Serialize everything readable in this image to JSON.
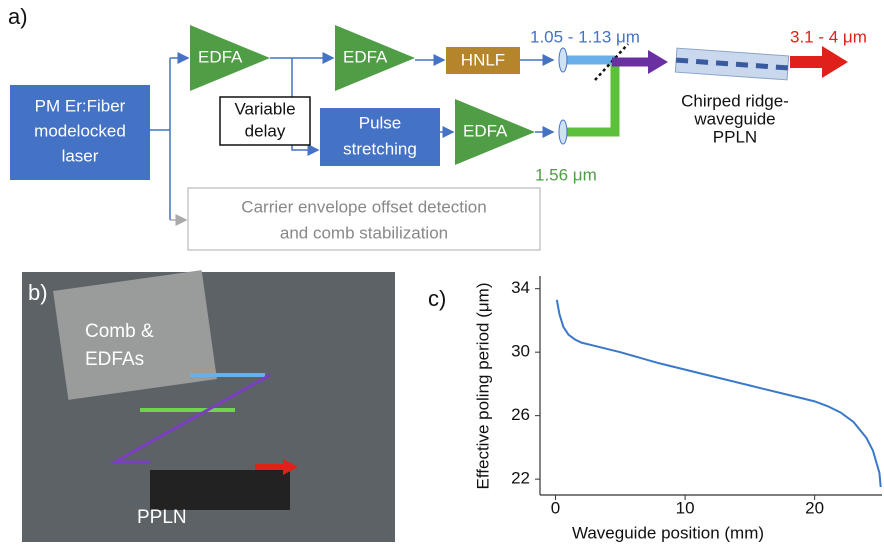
{
  "panel_a": {
    "label": "a)",
    "laser": [
      "PM Er:Fiber",
      "modelocked",
      "laser"
    ],
    "edfa": [
      "EDFA",
      "EDFA",
      "EDFA"
    ],
    "hnlf": "HNLF",
    "delay": [
      "Variable",
      "delay"
    ],
    "stretch": [
      "Pulse",
      "stretching"
    ],
    "ceo": [
      "Carrier envelope offset detection",
      "and comb stabilization"
    ],
    "blue_wavelength": "1.05 - 1.13 μm",
    "green_wavelength": "1.56 μm",
    "waveguide": [
      "Chirped ridge-",
      "waveguide",
      "PPLN"
    ],
    "output_wavelength": "3.1 - 4 μm"
  },
  "panel_b": {
    "label": "b)",
    "comb": [
      "Comb &",
      "EDFAs"
    ],
    "ppln": "PPLN"
  },
  "chart_data": {
    "type": "line",
    "label": "c)",
    "x_label": "Waveguide position (mm)",
    "y_label": "Effective poling period (μm)",
    "x": [
      0.1,
      0.3,
      0.6,
      1,
      1.5,
      2,
      3,
      5,
      8,
      10,
      12,
      15,
      18,
      20,
      21,
      22,
      23,
      24,
      24.5,
      25,
      25.1
    ],
    "series": [
      {
        "color": "#3a78c9",
        "values": [
          33.3,
          32.4,
          31.6,
          31.1,
          30.8,
          30.6,
          30.4,
          30.0,
          29.3,
          28.9,
          28.5,
          27.9,
          27.3,
          26.9,
          26.6,
          26.2,
          25.6,
          24.6,
          23.8,
          22.4,
          21.5
        ]
      }
    ],
    "xlim": [
      -1.2,
      25.2
    ],
    "ylim": [
      21,
      34.8
    ],
    "xticks": [
      0,
      10,
      20
    ],
    "yticks": [
      22,
      26,
      30,
      34
    ]
  }
}
